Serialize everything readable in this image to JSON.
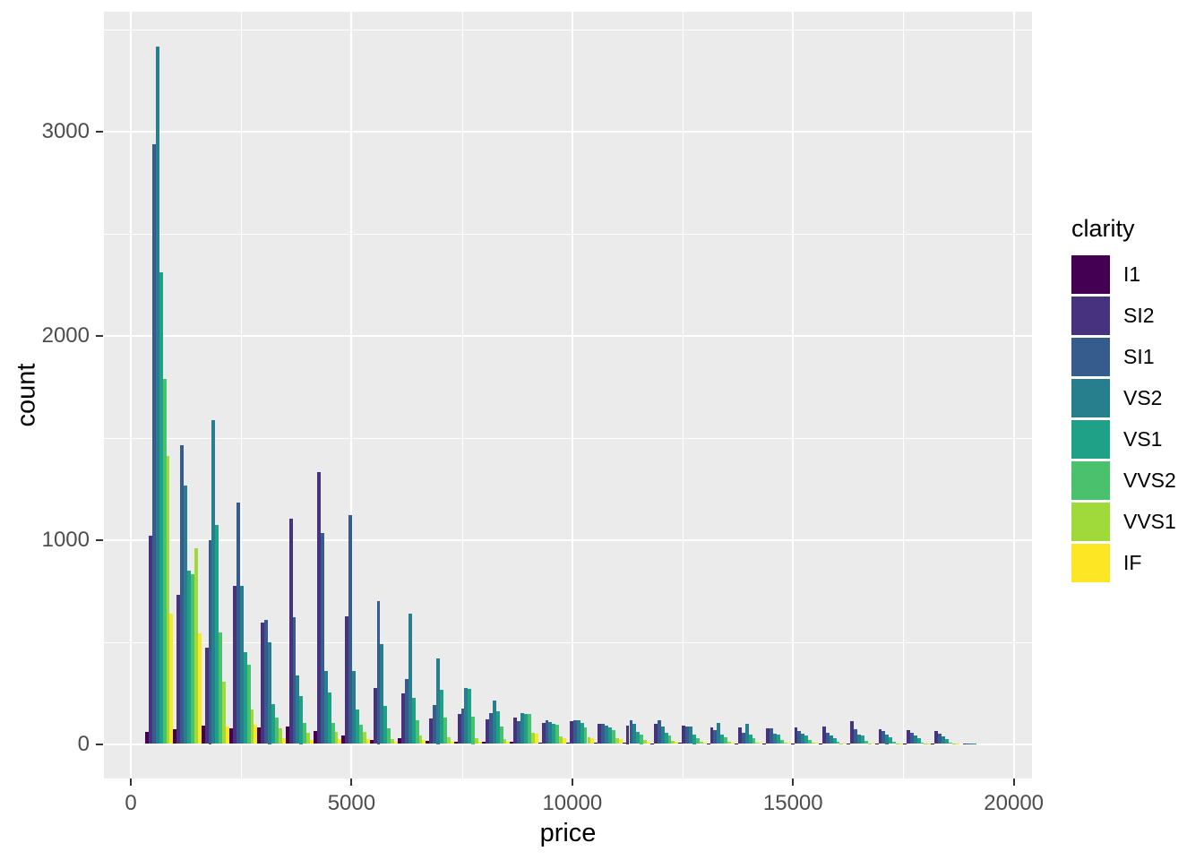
{
  "panel": {
    "background": "#EBEBEB",
    "grid_color": "#FFFFFF"
  },
  "axes": {
    "x": {
      "title": "price",
      "major_ticks": [
        0,
        5000,
        10000,
        15000,
        20000
      ],
      "minor_ticks": [
        2500,
        7500,
        12500,
        17500
      ],
      "tick_label_color": "#4D4D4D"
    },
    "y": {
      "title": "count",
      "major_ticks": [
        0,
        1000,
        2000,
        3000
      ],
      "minor_ticks": [
        500,
        1500,
        2500,
        3500
      ],
      "tick_label_color": "#4D4D4D"
    }
  },
  "legend": {
    "title": "clarity",
    "position": "right",
    "items": [
      {
        "label": "I1",
        "color": "#440154"
      },
      {
        "label": "SI2",
        "color": "#46327E"
      },
      {
        "label": "SI1",
        "color": "#365C8D"
      },
      {
        "label": "VS2",
        "color": "#277F8E"
      },
      {
        "label": "VS1",
        "color": "#1FA187"
      },
      {
        "label": "VVS2",
        "color": "#4AC16D"
      },
      {
        "label": "VVS1",
        "color": "#9FDA3A"
      },
      {
        "label": "IF",
        "color": "#FDE725"
      }
    ]
  },
  "chart_data": {
    "type": "bar",
    "mode": "dodged-histogram",
    "xlabel": "price",
    "ylabel": "count",
    "x_range": [
      0,
      20000
    ],
    "y_range": [
      0,
      3500
    ],
    "grid": true,
    "legend_position": "right",
    "bin_start": 326,
    "binwidth": 635.7,
    "bin_centers": [
      644,
      1280,
      1915,
      2551,
      3187,
      3822,
      4458,
      5094,
      5730,
      6365,
      7001,
      7637,
      8272,
      8908,
      9544,
      10180,
      10815,
      11451,
      12087,
      12722,
      13358,
      13994,
      14630,
      15265,
      15901,
      16537,
      17172,
      17808,
      18444,
      19080
    ],
    "series": [
      {
        "name": "I1",
        "color": "#440154",
        "values": [
          60,
          73,
          92,
          76,
          80,
          85,
          63,
          42,
          20,
          30,
          15,
          12,
          10,
          13,
          8,
          8,
          6,
          5,
          4,
          6,
          4,
          4,
          3,
          3,
          2,
          2,
          2,
          1,
          1,
          0
        ]
      },
      {
        "name": "SI2",
        "color": "#46327E",
        "values": [
          1020,
          733,
          470,
          777,
          595,
          1103,
          1331,
          625,
          275,
          250,
          125,
          145,
          120,
          130,
          105,
          112,
          98,
          90,
          97,
          88,
          80,
          82,
          76,
          83,
          85,
          110,
          72,
          68,
          62,
          2
        ]
      },
      {
        "name": "SI1",
        "color": "#365C8D",
        "values": [
          2940,
          1466,
          1000,
          1183,
          610,
          620,
          1033,
          1121,
          700,
          320,
          190,
          175,
          150,
          112,
          115,
          118,
          100,
          118,
          115,
          86,
          70,
          55,
          76,
          62,
          55,
          72,
          62,
          55,
          52,
          3
        ]
      },
      {
        "name": "VS2",
        "color": "#277F8E",
        "values": [
          3417,
          1265,
          1586,
          775,
          500,
          335,
          356,
          360,
          490,
          640,
          420,
          275,
          215,
          150,
          108,
          115,
          92,
          100,
          85,
          84,
          105,
          100,
          52,
          50,
          40,
          48,
          45,
          40,
          36,
          2
        ]
      },
      {
        "name": "VS1",
        "color": "#1FA187",
        "values": [
          2310,
          850,
          1073,
          450,
          195,
          236,
          252,
          170,
          188,
          225,
          265,
          270,
          160,
          148,
          100,
          105,
          82,
          60,
          55,
          45,
          44,
          48,
          46,
          40,
          30,
          40,
          32,
          28,
          24,
          1
        ]
      },
      {
        "name": "VVS2",
        "color": "#4AC16D",
        "values": [
          1790,
          830,
          546,
          388,
          130,
          105,
          102,
          95,
          75,
          115,
          130,
          135,
          85,
          145,
          95,
          80,
          70,
          45,
          40,
          28,
          35,
          28,
          20,
          18,
          12,
          14,
          10,
          8,
          6,
          0
        ]
      },
      {
        "name": "VVS1",
        "color": "#9FDA3A",
        "values": [
          1410,
          960,
          304,
          170,
          78,
          55,
          58,
          60,
          25,
          40,
          35,
          30,
          25,
          55,
          38,
          35,
          28,
          18,
          15,
          12,
          10,
          8,
          6,
          5,
          4,
          4,
          3,
          2,
          2,
          0
        ]
      },
      {
        "name": "IF",
        "color": "#FDE725",
        "values": [
          640,
          542,
          85,
          95,
          30,
          20,
          24,
          25,
          12,
          18,
          12,
          10,
          12,
          50,
          30,
          28,
          22,
          12,
          10,
          8,
          8,
          6,
          5,
          8,
          8,
          5,
          4,
          3,
          4,
          0
        ]
      }
    ]
  }
}
